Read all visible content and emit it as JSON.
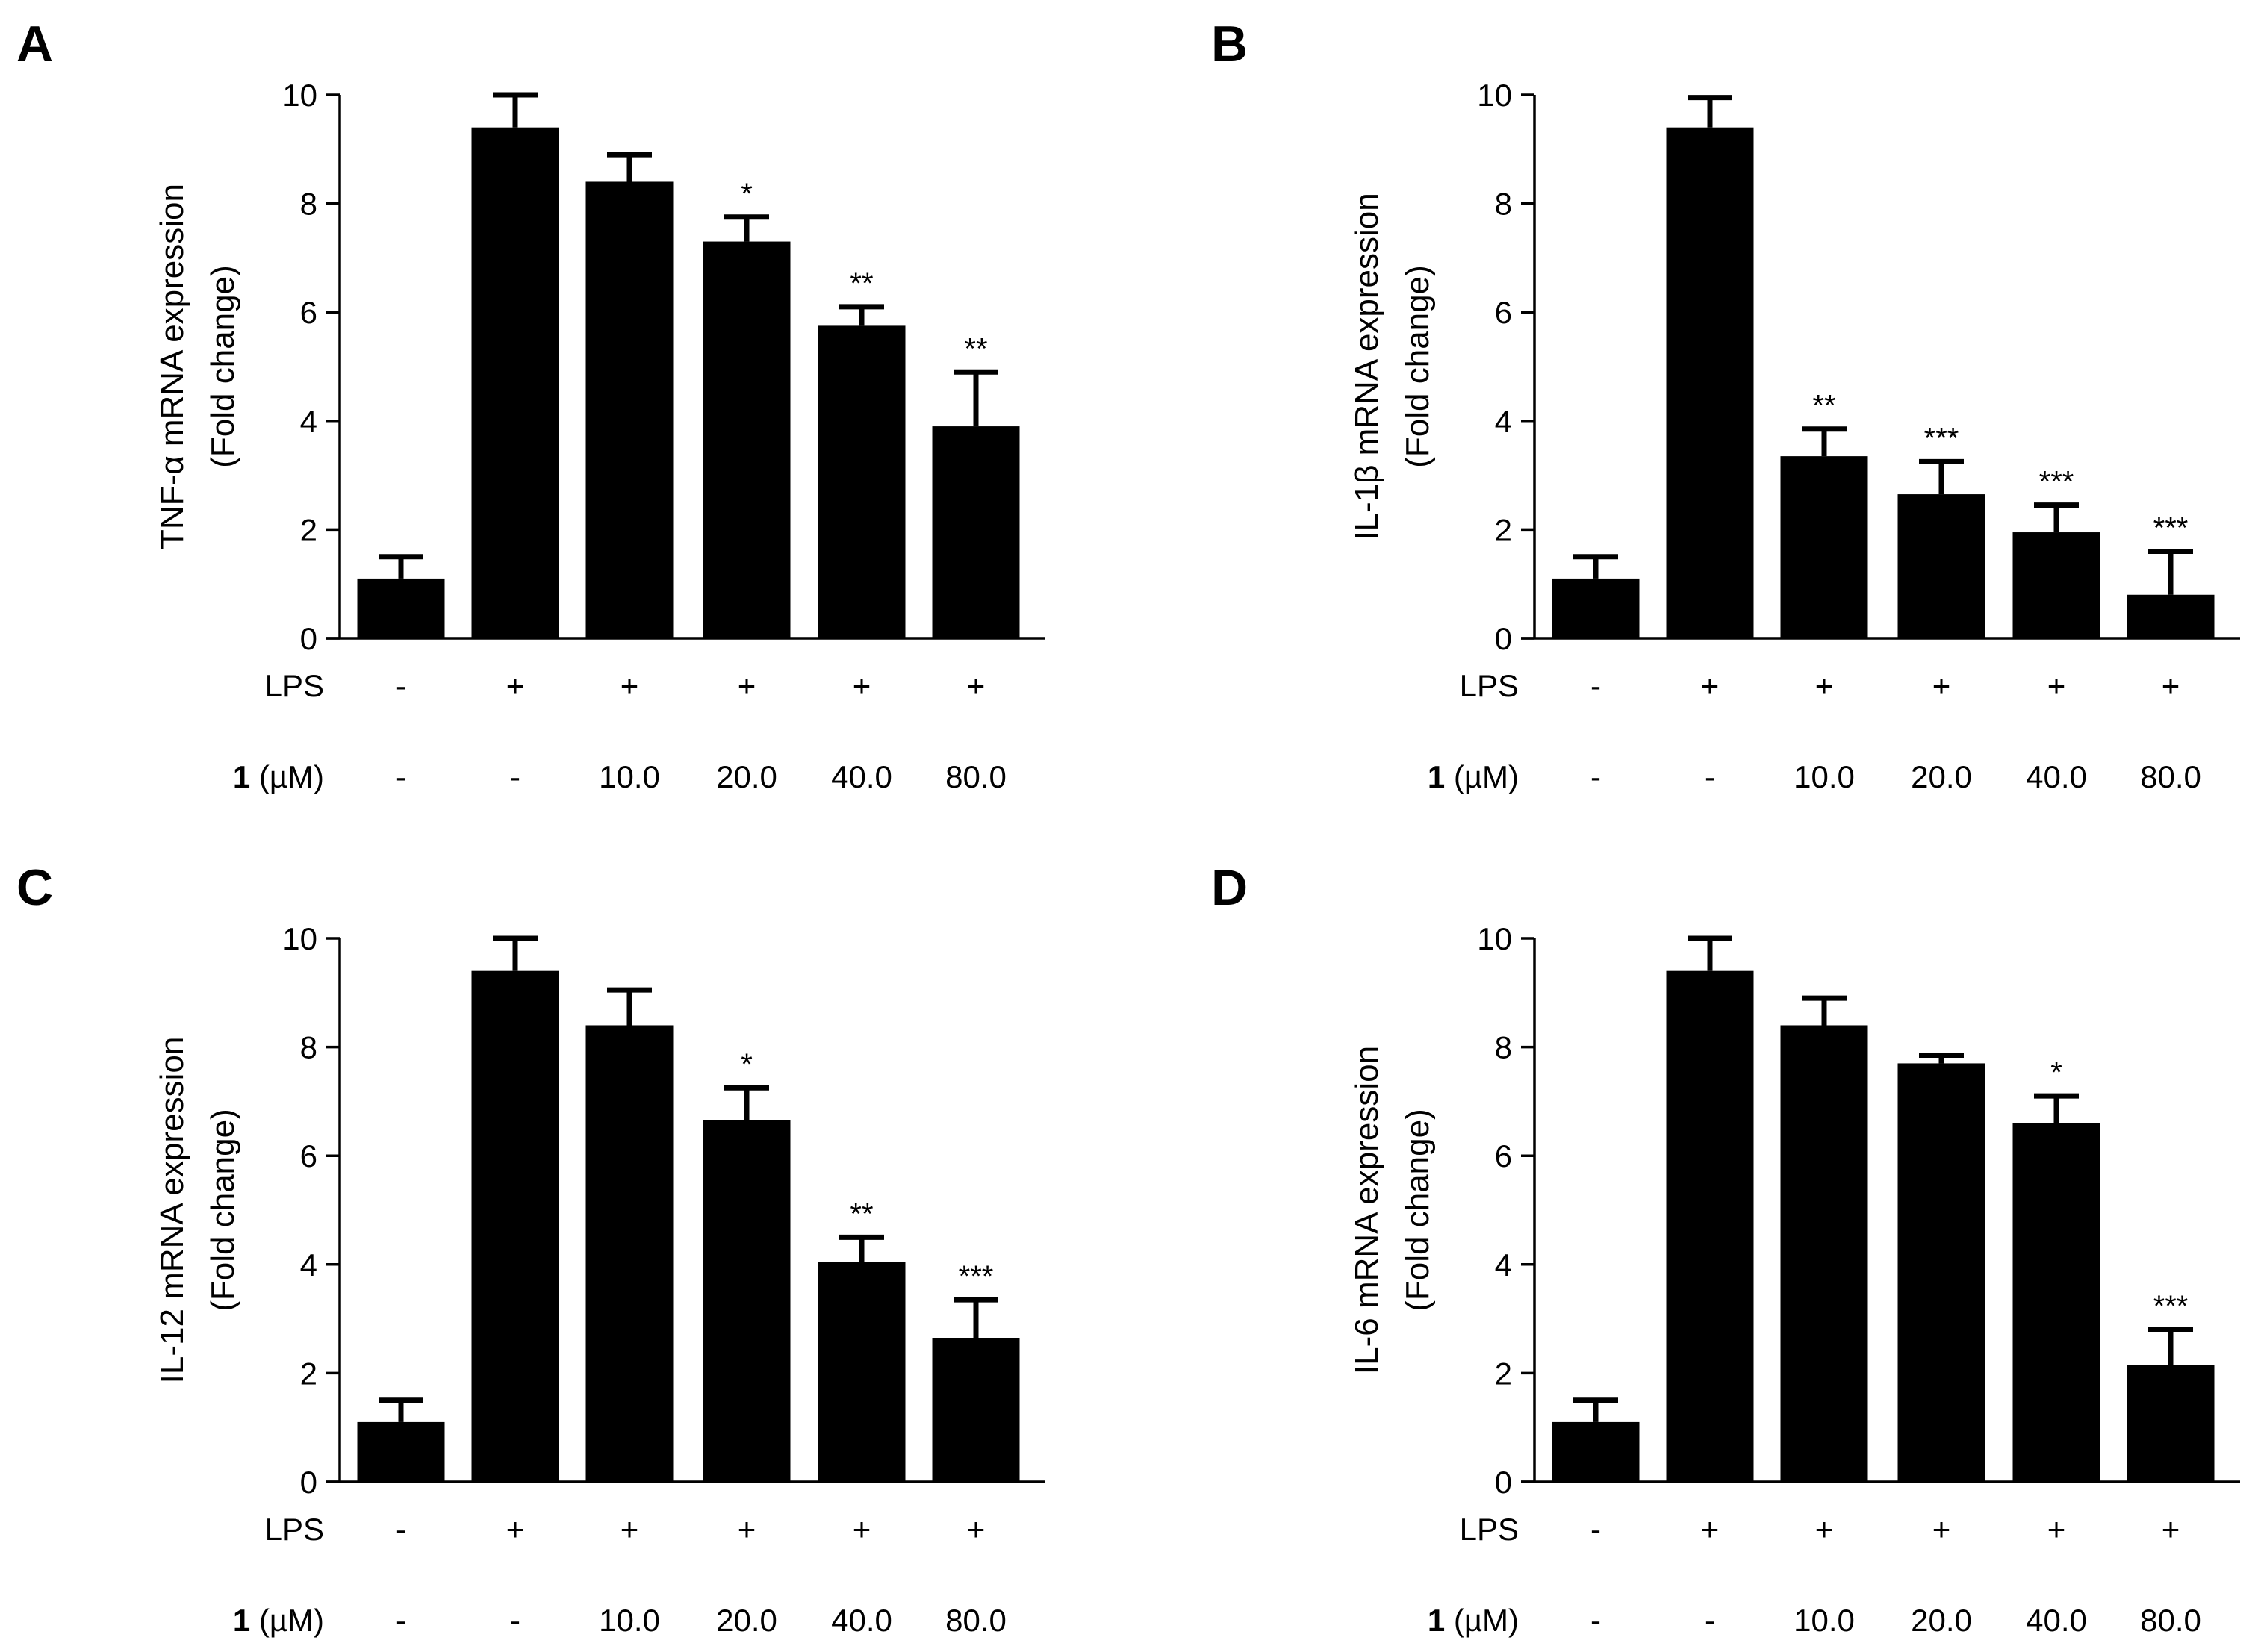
{
  "row_labels": {
    "lps": "LPS",
    "compound_bold": "1",
    "compound_unit": " (µM)"
  },
  "conditions": {
    "lps": [
      "-",
      "+",
      "+",
      "+",
      "+",
      "+"
    ],
    "compound": [
      "-",
      "-",
      "10.0",
      "20.0",
      "40.0",
      "80.0"
    ]
  },
  "chart_data": [
    {
      "panel": "A",
      "type": "bar",
      "ylabel_line1": "TNF-α mRNA expression",
      "ylabel_line2": "(Fold change)",
      "ylim": [
        0,
        10
      ],
      "yticks": [
        0,
        2,
        4,
        6,
        8,
        10
      ],
      "values": [
        1.1,
        9.4,
        8.4,
        7.3,
        5.75,
        3.9
      ],
      "errors": [
        0.4,
        0.6,
        0.5,
        0.45,
        0.35,
        1.0
      ],
      "significance": [
        "",
        "",
        "",
        "*",
        "**",
        "**"
      ]
    },
    {
      "panel": "B",
      "type": "bar",
      "ylabel_line1": "IL-1β mRNA expression",
      "ylabel_line2": "(Fold change)",
      "ylim": [
        0,
        10
      ],
      "yticks": [
        0,
        2,
        4,
        6,
        8,
        10
      ],
      "values": [
        1.1,
        9.4,
        3.35,
        2.65,
        1.95,
        0.8
      ],
      "errors": [
        0.4,
        0.55,
        0.5,
        0.6,
        0.5,
        0.8
      ],
      "significance": [
        "",
        "",
        "**",
        "***",
        "***",
        "***"
      ]
    },
    {
      "panel": "C",
      "type": "bar",
      "ylabel_line1": "IL-12 mRNA expression",
      "ylabel_line2": "(Fold change)",
      "ylim": [
        0,
        10
      ],
      "yticks": [
        0,
        2,
        4,
        6,
        8,
        10
      ],
      "values": [
        1.1,
        9.4,
        8.4,
        6.65,
        4.05,
        2.65
      ],
      "errors": [
        0.4,
        0.6,
        0.65,
        0.6,
        0.45,
        0.7
      ],
      "significance": [
        "",
        "",
        "",
        "*",
        "**",
        "***"
      ]
    },
    {
      "panel": "D",
      "type": "bar",
      "ylabel_line1": "IL-6 mRNA expression",
      "ylabel_line2": "(Fold change)",
      "ylim": [
        0,
        10
      ],
      "yticks": [
        0,
        2,
        4,
        6,
        8,
        10
      ],
      "values": [
        1.1,
        9.4,
        8.4,
        7.7,
        6.6,
        2.15
      ],
      "errors": [
        0.4,
        0.6,
        0.5,
        0.15,
        0.5,
        0.65
      ],
      "significance": [
        "",
        "",
        "",
        "",
        "*",
        "***"
      ]
    }
  ]
}
